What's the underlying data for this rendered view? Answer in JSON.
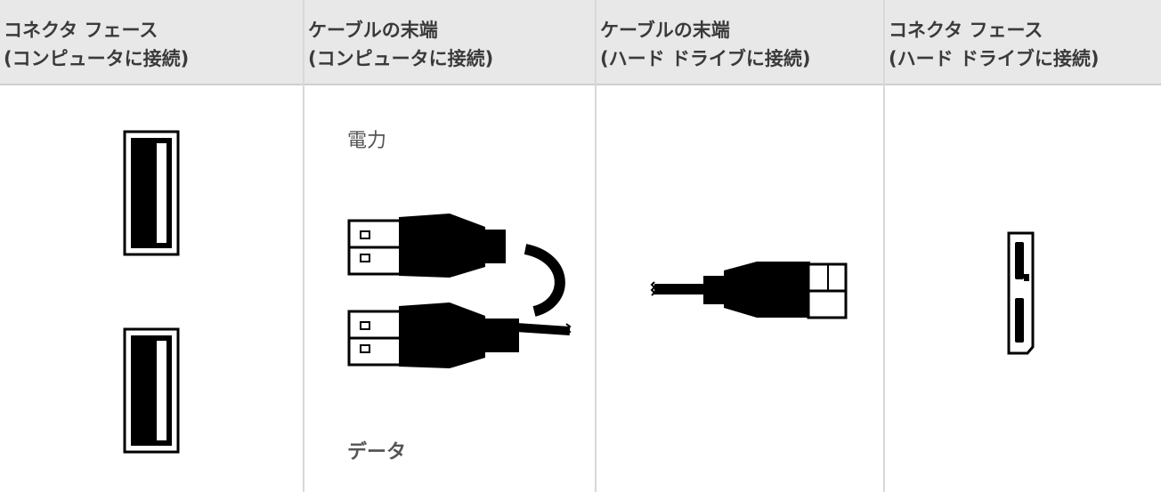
{
  "table": {
    "header": [
      [
        "コネクタ フェース",
        "(コンピュータに接続)"
      ],
      [
        "ケーブルの末端",
        "(コンピュータに接続)"
      ],
      [
        "ケーブルの末端",
        "(ハード ドライブに接続)"
      ],
      [
        "コネクタ フェース",
        "(ハード ドライブに接続)"
      ]
    ],
    "cable_labels": {
      "power": "電力",
      "data": "データ"
    }
  }
}
